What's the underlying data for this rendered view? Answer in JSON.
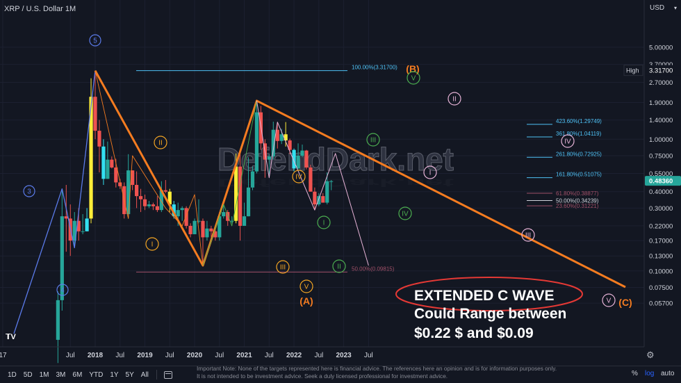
{
  "symbol": {
    "title": "XRP / U.S. Dollar  1M"
  },
  "price_axis": {
    "currency": "USD",
    "labels": [
      "5.00000",
      "3.70000",
      "2.70000",
      "1.90000",
      "1.40000",
      "1.00000",
      "0.75000",
      "0.55000",
      "0.40000",
      "0.30000",
      "0.22000",
      "0.17000",
      "0.13000",
      "0.10000",
      "0.07500",
      "0.05700"
    ],
    "high_label": "High",
    "high_value": "3.31700",
    "last_price": "0.48360"
  },
  "time_axis": {
    "labels": [
      "17",
      "Jul",
      "2018",
      "Jul",
      "2019",
      "Jul",
      "2020",
      "Jul",
      "2021",
      "Jul",
      "2022",
      "Jul",
      "2023",
      "Jul"
    ]
  },
  "watermark": "DefendDark.net",
  "annotation": {
    "line1": "EXTENDED C WAVE",
    "line2": "Could Range between",
    "line3": "$0.22 $ and $0.09"
  },
  "fib_labels": [
    "100.00%(3.31700)",
    "50.00%(0.09815)",
    "423.60%(1.29749)",
    "361.80%(1.04119)",
    "261.80%(0.72925)",
    "161.80%(0.51075)",
    "61.80%(0.38877)",
    "50.00%(0.34239)",
    "23.60%(0.31221)"
  ],
  "wave_labels": {
    "blue": [
      "3",
      "4",
      "5"
    ],
    "orange": [
      "II",
      "I",
      "IV",
      "III",
      "V",
      "(A)",
      "(B)",
      "(C)"
    ],
    "green": [
      "I",
      "II",
      "III",
      "IV",
      "V"
    ],
    "pink": [
      "I",
      "II",
      "III",
      "IV",
      "V"
    ]
  },
  "bottom_bar": {
    "ranges": [
      "1D",
      "5D",
      "1M",
      "3M",
      "6M",
      "YTD",
      "1Y",
      "5Y",
      "All"
    ],
    "note": "Important Note: None of the targets represented here is financial advice. The references here an opinion and is for information purposes only. It is not intended to be investment advice. Seek a duly licensed professional for investment advice.",
    "percent": "%",
    "log": "log",
    "auto": "auto"
  },
  "colors": {
    "background": "#131722",
    "up": "#26a69a",
    "down": "#ef5350",
    "orange": "#f57c20",
    "blue_wave": "#5b7bea",
    "green_wave": "#4caf50",
    "pink_wave": "#e8b4d8",
    "fib": "#4fc3f7",
    "highlight_yellow": "#ffee38",
    "highlight_cyan": "#33e0f0"
  },
  "chart_data": {
    "type": "candlestick",
    "scale": "log",
    "ylim": [
      0.05,
      5.8
    ],
    "note": "Monthly XRP/USD candles, approximate values read from chart",
    "x": [
      "2017-04",
      "2017-05",
      "2017-06",
      "2017-07",
      "2017-08",
      "2017-09",
      "2017-10",
      "2017-11",
      "2017-12",
      "2018-01",
      "2018-02",
      "2018-03",
      "2018-04",
      "2018-05",
      "2018-06",
      "2018-07",
      "2018-08",
      "2018-09",
      "2018-10",
      "2018-11",
      "2018-12",
      "2019-01",
      "2019-02",
      "2019-03",
      "2019-04",
      "2019-05",
      "2019-06",
      "2019-07",
      "2019-08",
      "2019-09",
      "2019-10",
      "2019-11",
      "2019-12",
      "2020-01",
      "2020-02",
      "2020-03",
      "2020-04",
      "2020-05",
      "2020-06",
      "2020-07",
      "2020-08",
      "2020-09",
      "2020-10",
      "2020-11",
      "2020-12",
      "2021-01",
      "2021-02",
      "2021-03",
      "2021-04",
      "2021-05",
      "2021-06",
      "2021-07",
      "2021-08",
      "2021-09",
      "2021-10",
      "2021-11",
      "2021-12",
      "2022-01",
      "2022-02",
      "2022-03",
      "2022-04",
      "2022-05",
      "2022-06",
      "2022-07",
      "2022-08",
      "2022-09",
      "2022-10"
    ],
    "open": [
      0.03,
      0.06,
      0.26,
      0.25,
      0.17,
      0.24,
      0.2,
      0.2,
      0.25,
      2.1,
      1.16,
      0.88,
      0.5,
      0.7,
      0.61,
      0.47,
      0.44,
      0.27,
      0.58,
      0.45,
      0.37,
      0.35,
      0.31,
      0.32,
      0.31,
      0.29,
      0.41,
      0.4,
      0.32,
      0.26,
      0.29,
      0.3,
      0.22,
      0.19,
      0.24,
      0.24,
      0.18,
      0.21,
      0.2,
      0.18,
      0.26,
      0.28,
      0.24,
      0.24,
      0.62,
      0.22,
      0.26,
      0.43,
      0.57,
      1.6,
      0.93,
      0.7,
      0.74,
      1.18,
      0.97,
      1.09,
      0.98,
      0.83,
      0.6,
      0.75,
      0.82,
      0.61,
      0.4,
      0.32,
      0.37,
      0.33,
      0.48
    ],
    "high": [
      0.07,
      0.42,
      0.45,
      0.32,
      0.28,
      0.3,
      0.27,
      0.3,
      2.9,
      3.32,
      1.4,
      1.0,
      0.96,
      0.74,
      0.71,
      0.5,
      0.47,
      0.77,
      0.58,
      0.57,
      0.42,
      0.38,
      0.34,
      0.33,
      0.37,
      0.48,
      0.49,
      0.42,
      0.34,
      0.33,
      0.31,
      0.31,
      0.23,
      0.25,
      0.35,
      0.25,
      0.24,
      0.22,
      0.21,
      0.28,
      0.32,
      0.29,
      0.26,
      0.78,
      0.79,
      0.33,
      0.73,
      0.62,
      1.96,
      1.79,
      1.0,
      0.77,
      1.36,
      1.34,
      1.2,
      1.35,
      1.01,
      0.85,
      0.93,
      0.91,
      0.83,
      0.64,
      0.43,
      0.39,
      0.39,
      0.56,
      0.49
    ],
    "low": [
      0.02,
      0.05,
      0.14,
      0.13,
      0.15,
      0.17,
      0.19,
      0.2,
      0.23,
      1.0,
      0.56,
      0.45,
      0.5,
      0.6,
      0.43,
      0.42,
      0.25,
      0.25,
      0.41,
      0.3,
      0.28,
      0.29,
      0.3,
      0.29,
      0.28,
      0.28,
      0.39,
      0.28,
      0.25,
      0.22,
      0.24,
      0.21,
      0.18,
      0.19,
      0.23,
      0.11,
      0.17,
      0.18,
      0.17,
      0.17,
      0.25,
      0.22,
      0.23,
      0.23,
      0.17,
      0.24,
      0.26,
      0.41,
      0.55,
      0.83,
      0.51,
      0.54,
      0.7,
      0.85,
      0.92,
      0.88,
      0.77,
      0.57,
      0.59,
      0.73,
      0.59,
      0.4,
      0.29,
      0.31,
      0.33,
      0.32,
      0.41
    ],
    "close": [
      0.06,
      0.26,
      0.25,
      0.17,
      0.24,
      0.2,
      0.2,
      0.25,
      2.1,
      1.16,
      0.88,
      0.5,
      0.7,
      0.61,
      0.47,
      0.44,
      0.27,
      0.58,
      0.45,
      0.37,
      0.35,
      0.31,
      0.32,
      0.31,
      0.29,
      0.41,
      0.4,
      0.32,
      0.26,
      0.29,
      0.3,
      0.22,
      0.19,
      0.24,
      0.24,
      0.18,
      0.21,
      0.2,
      0.18,
      0.26,
      0.28,
      0.24,
      0.24,
      0.62,
      0.22,
      0.26,
      0.43,
      0.57,
      1.6,
      0.93,
      0.7,
      0.74,
      1.18,
      0.97,
      1.09,
      0.98,
      0.83,
      0.6,
      0.75,
      0.82,
      0.61,
      0.4,
      0.32,
      0.37,
      0.33,
      0.48,
      0.48
    ]
  }
}
